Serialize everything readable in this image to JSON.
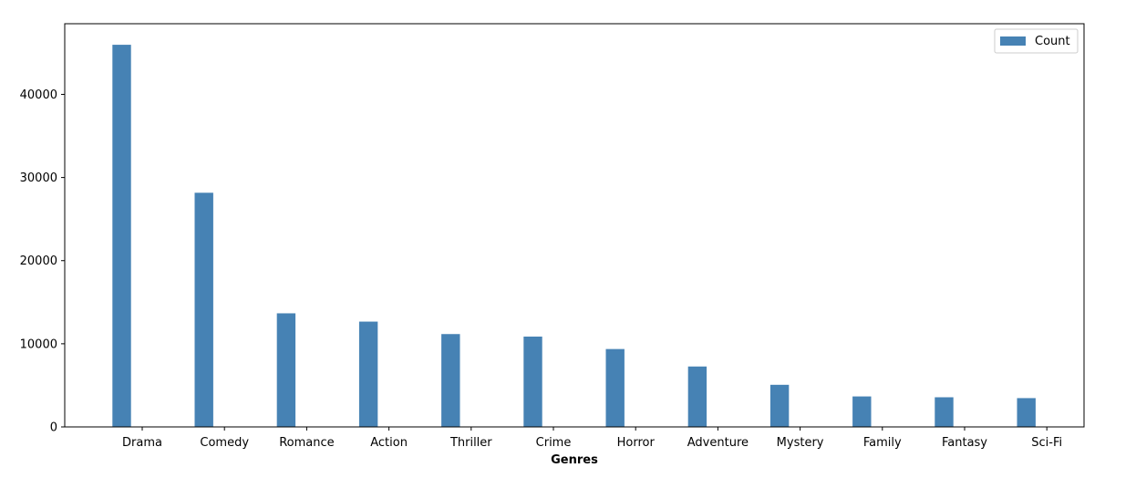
{
  "chart_data": {
    "type": "bar",
    "categories": [
      "Drama",
      "Comedy",
      "Romance",
      "Action",
      "Thriller",
      "Crime",
      "Horror",
      "Adventure",
      "Mystery",
      "Family",
      "Fantasy",
      "Sci-Fi"
    ],
    "series": [
      {
        "name": "Count",
        "color": "#4682b4",
        "values": [
          46000,
          28200,
          13700,
          12700,
          11200,
          10900,
          9400,
          7300,
          5100,
          3700,
          3600,
          3500
        ]
      }
    ],
    "title": "",
    "xlabel": "Genres",
    "ylabel": "",
    "ylim": [
      0,
      48500
    ],
    "yticks": [
      0,
      10000,
      20000,
      30000,
      40000
    ],
    "ytick_labels": [
      "0",
      "10000",
      "20000",
      "30000",
      "40000"
    ],
    "grid": false,
    "legend_position": "top-right"
  }
}
